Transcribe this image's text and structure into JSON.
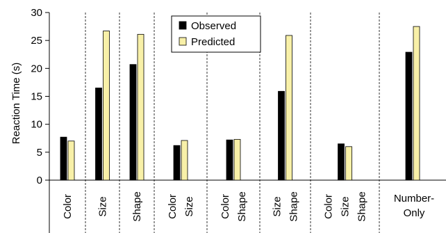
{
  "chart_data": {
    "type": "bar",
    "ylabel": "Reaction Time (s)",
    "ylim": [
      0,
      30
    ],
    "yticks": [
      0,
      5,
      10,
      15,
      20,
      25,
      30
    ],
    "grid": false,
    "legend_position": "top-center",
    "groups": [
      {
        "label_lines": [
          "Color"
        ],
        "bars": [
          {
            "label_lines": [
              "Color"
            ],
            "observed": 7.7,
            "predicted": 7.0
          }
        ]
      },
      {
        "label_lines": [
          "Size"
        ],
        "bars": [
          {
            "label_lines": [
              "Size"
            ],
            "observed": 16.5,
            "predicted": 26.7
          }
        ]
      },
      {
        "label_lines": [
          "Shape"
        ],
        "bars": [
          {
            "label_lines": [
              "Shape"
            ],
            "observed": 20.7,
            "predicted": 26.1
          }
        ]
      },
      {
        "label_lines": [
          "Color",
          "Size"
        ],
        "bars": [
          {
            "label_lines": [
              "Color",
              "Size"
            ],
            "observed": 6.2,
            "predicted": 7.1
          }
        ]
      },
      {
        "label_lines": [
          "Color",
          "Shape"
        ],
        "bars": [
          {
            "label_lines": [
              "Color",
              "Shape"
            ],
            "observed": 7.2,
            "predicted": 7.3
          }
        ]
      },
      {
        "label_lines": [
          "Size",
          "Shape"
        ],
        "bars": [
          {
            "label_lines": [
              "Size",
              "Shape"
            ],
            "observed": 15.9,
            "predicted": 25.9
          }
        ]
      },
      {
        "label_lines": [
          "Color",
          "Size",
          "Shape"
        ],
        "bars": [
          {
            "label_lines": [
              "Color",
              "Size",
              "Shape"
            ],
            "observed": 6.5,
            "predicted": 6.0
          }
        ]
      },
      {
        "label_lines": [
          "Number-",
          "Only"
        ],
        "horizontal": true,
        "bars": [
          {
            "label_lines": [
              "Number-",
              "Only"
            ],
            "observed": 22.9,
            "predicted": 27.5
          }
        ]
      }
    ],
    "series": [
      {
        "name": "Observed",
        "color": "#000000"
      },
      {
        "name": "Predicted",
        "color": "#f8f0a8"
      }
    ]
  }
}
